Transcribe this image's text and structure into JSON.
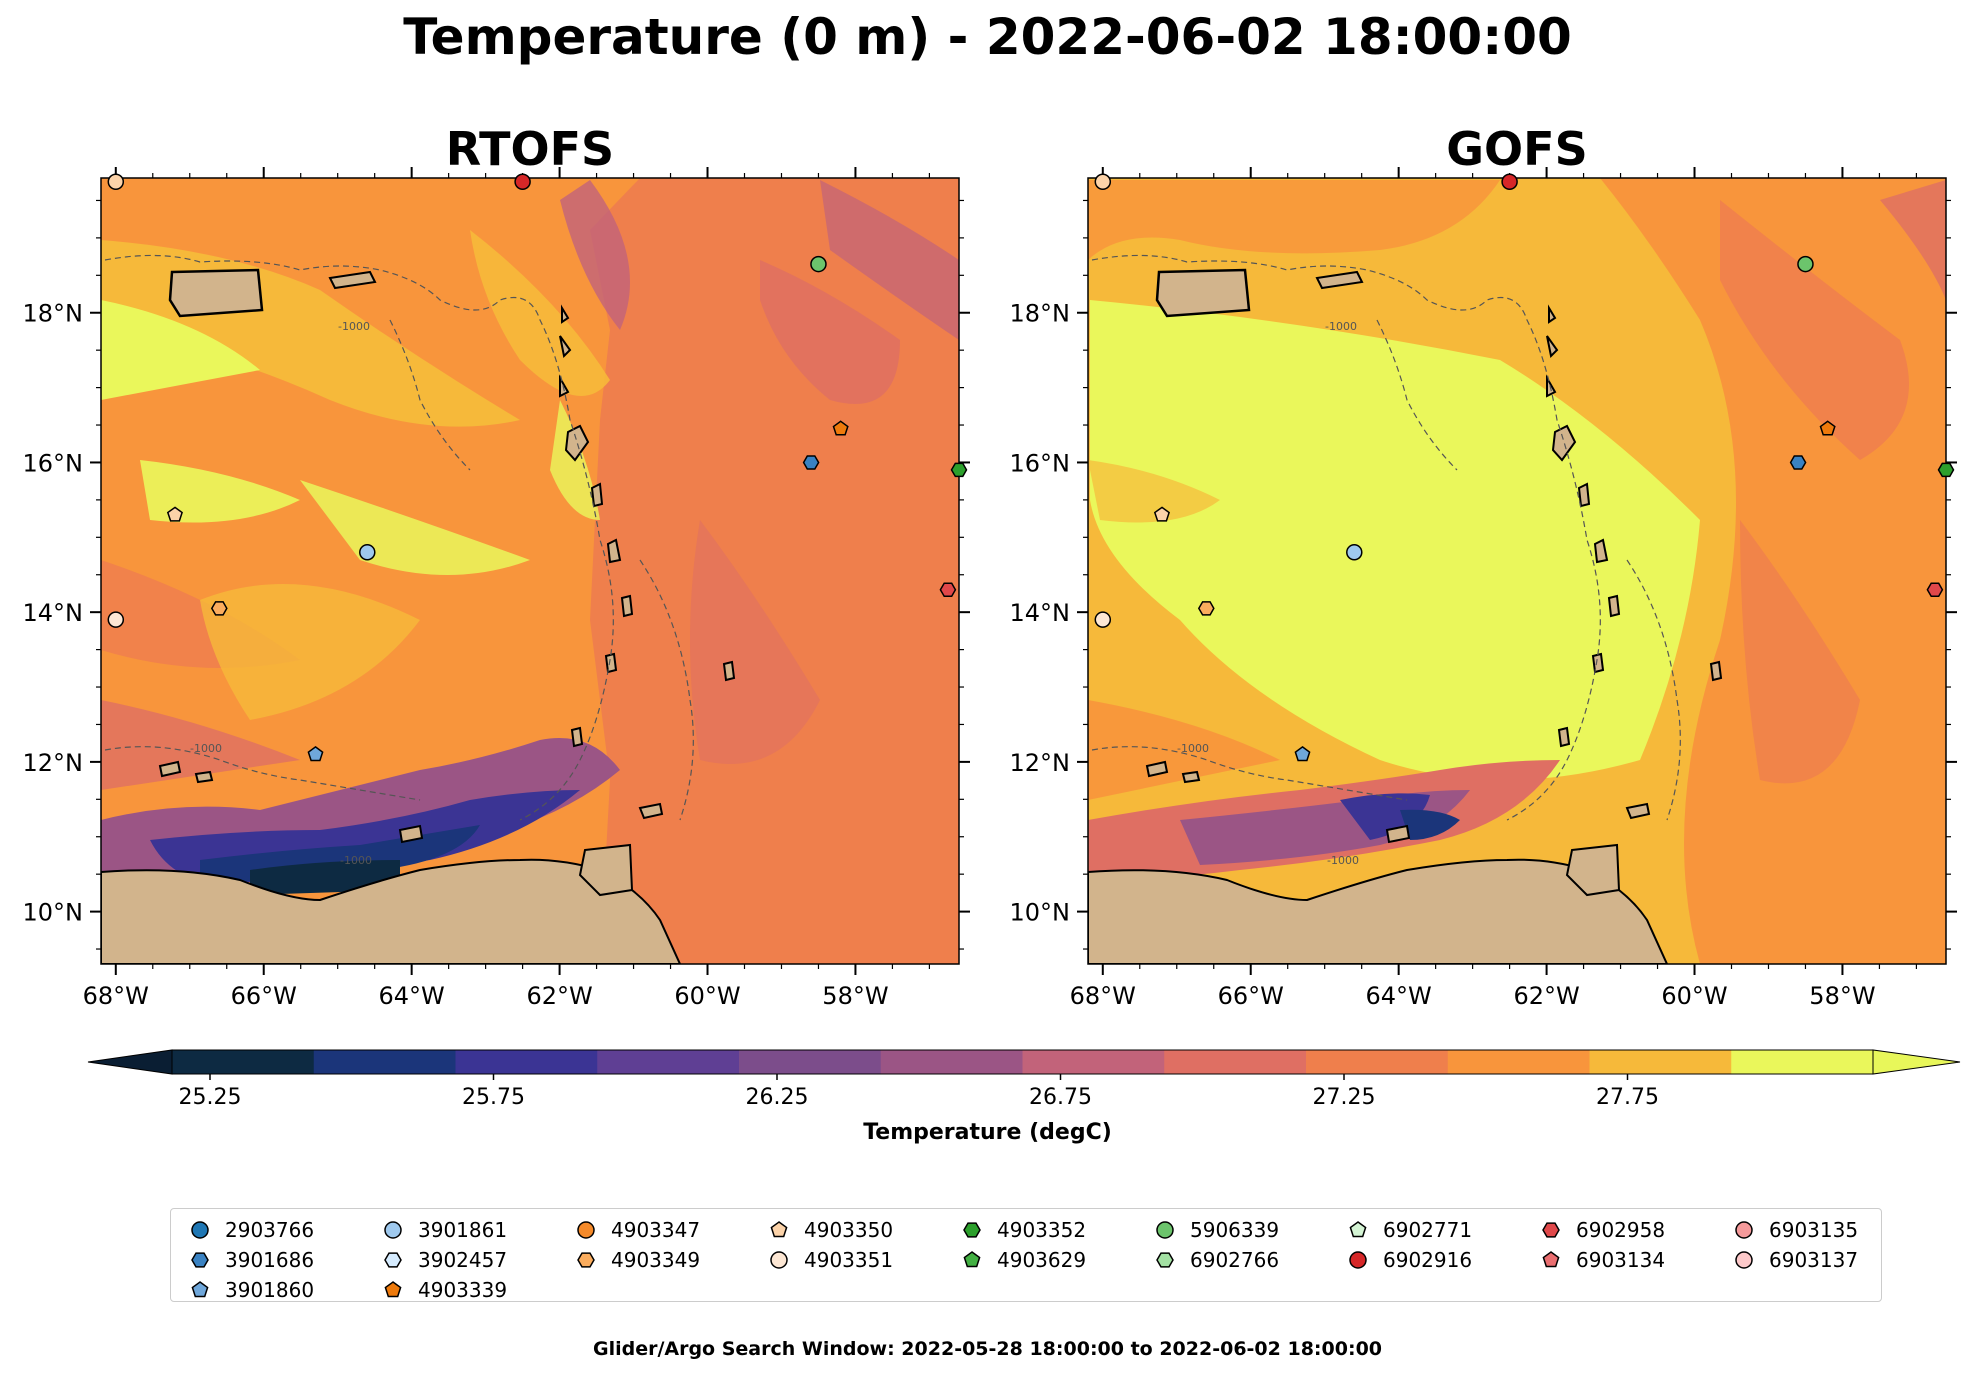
{
  "figure": {
    "title": "Temperature (0 m) - 2022-06-02 18:00:00",
    "footer": "Glider/Argo Search Window: 2022-05-28 18:00:00 to 2022-06-02 18:00:00"
  },
  "panels": [
    {
      "title": "RTOFS"
    },
    {
      "title": "GOFS"
    }
  ],
  "axes": {
    "lon_ticks": [
      -68,
      -66,
      -64,
      -62,
      -60,
      -58
    ],
    "lon_labels": [
      "68°W",
      "66°W",
      "64°W",
      "62°W",
      "60°W",
      "58°W"
    ],
    "lat_ticks": [
      10,
      12,
      14,
      16,
      18
    ],
    "lat_labels": [
      "10°N",
      "12°N",
      "14°N",
      "16°N",
      "18°N"
    ],
    "lon_range": [
      -68.2,
      -56.6
    ],
    "lat_range": [
      9.3,
      19.8
    ]
  },
  "contour_label": "-1000",
  "colorbar": {
    "label": "Temperature (degC)",
    "ticks": [
      "25.25",
      "25.75",
      "26.25",
      "26.75",
      "27.25",
      "27.75"
    ],
    "colors": [
      "#0d2a42",
      "#1b357a",
      "#3b3494",
      "#5f3f94",
      "#7c4d8b",
      "#9b5585",
      "#c2637a",
      "#df6f63",
      "#ef7f4c",
      "#f8953c",
      "#f6b93a",
      "#eaf75b"
    ],
    "under_color": "#0a1e33",
    "over_color": "#e8f75a"
  },
  "legend": {
    "items": [
      {
        "id": "2903766",
        "color": "#1f77b4",
        "marker": "circle"
      },
      {
        "id": "3901686",
        "color": "#3a82c2",
        "marker": "hexagon"
      },
      {
        "id": "3901860",
        "color": "#6fa7da",
        "marker": "pentagon"
      },
      {
        "id": "3901861",
        "color": "#9fc9ee",
        "marker": "circle"
      },
      {
        "id": "3902457",
        "color": "#d6ecff",
        "marker": "hexagon"
      },
      {
        "id": "4903339",
        "color": "#ee7a0c",
        "marker": "pentagon"
      },
      {
        "id": "4903347",
        "color": "#f58a2a",
        "marker": "circle"
      },
      {
        "id": "4903349",
        "color": "#fbad5e",
        "marker": "hexagon"
      },
      {
        "id": "4903350",
        "color": "#fcd3a9",
        "marker": "pentagon"
      },
      {
        "id": "4903351",
        "color": "#fde7d4",
        "marker": "circle"
      },
      {
        "id": "4903352",
        "color": "#2ca02c",
        "marker": "hexagon"
      },
      {
        "id": "4903629",
        "color": "#43b043",
        "marker": "pentagon"
      },
      {
        "id": "5906339",
        "color": "#6cc46c",
        "marker": "circle"
      },
      {
        "id": "6902766",
        "color": "#a3e0a3",
        "marker": "hexagon"
      },
      {
        "id": "6902771",
        "color": "#d5f5d5",
        "marker": "pentagon"
      },
      {
        "id": "6902916",
        "color": "#d62728",
        "marker": "circle"
      },
      {
        "id": "6902958",
        "color": "#e0484a",
        "marker": "hexagon"
      },
      {
        "id": "6903134",
        "color": "#ea6e70",
        "marker": "pentagon"
      },
      {
        "id": "6903135",
        "color": "#f59a9b",
        "marker": "circle"
      },
      {
        "id": "6903137",
        "color": "#fdc9ca",
        "marker": "circle"
      }
    ]
  },
  "floats": [
    {
      "lon": -68.0,
      "lat": 19.75,
      "color": "#fcd3a9",
      "marker": "circle"
    },
    {
      "lon": -62.5,
      "lat": 19.75,
      "color": "#d62728",
      "marker": "circle"
    },
    {
      "lon": -58.5,
      "lat": 18.65,
      "color": "#6cc46c",
      "marker": "circle"
    },
    {
      "lon": -58.2,
      "lat": 16.45,
      "color": "#ee7a0c",
      "marker": "pentagon"
    },
    {
      "lon": -58.6,
      "lat": 16.0,
      "color": "#3a82c2",
      "marker": "hexagon"
    },
    {
      "lon": -56.6,
      "lat": 15.9,
      "color": "#2ca02c",
      "marker": "hexagon"
    },
    {
      "lon": -67.2,
      "lat": 15.3,
      "color": "#fcd3a9",
      "marker": "pentagon"
    },
    {
      "lon": -64.6,
      "lat": 14.8,
      "color": "#9fc9ee",
      "marker": "circle"
    },
    {
      "lon": -56.75,
      "lat": 14.3,
      "color": "#e0484a",
      "marker": "hexagon"
    },
    {
      "lon": -66.6,
      "lat": 14.05,
      "color": "#fbad5e",
      "marker": "hexagon"
    },
    {
      "lon": -68.0,
      "lat": 13.9,
      "color": "#fde7d4",
      "marker": "circle"
    },
    {
      "lon": -65.3,
      "lat": 12.1,
      "color": "#6fa7da",
      "marker": "pentagon"
    }
  ]
}
